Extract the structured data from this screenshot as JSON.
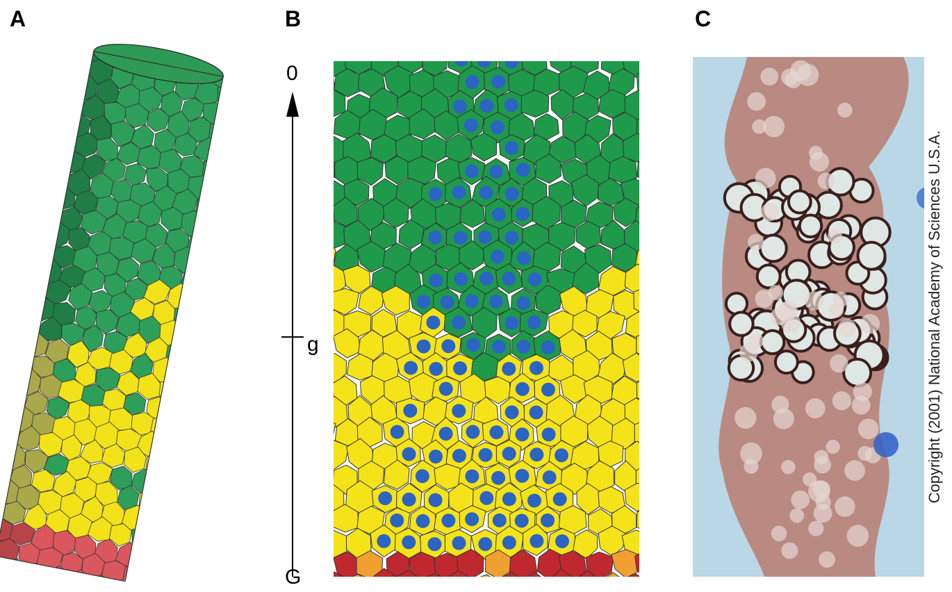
{
  "panels": [
    {
      "label": "A"
    },
    {
      "label": "B",
      "axis": {
        "top": "0",
        "middle": "g",
        "bottom": "G"
      }
    },
    {
      "label": "C",
      "copyright": "Copyright (2001) National Academy of Sciences U.S.A."
    }
  ]
}
